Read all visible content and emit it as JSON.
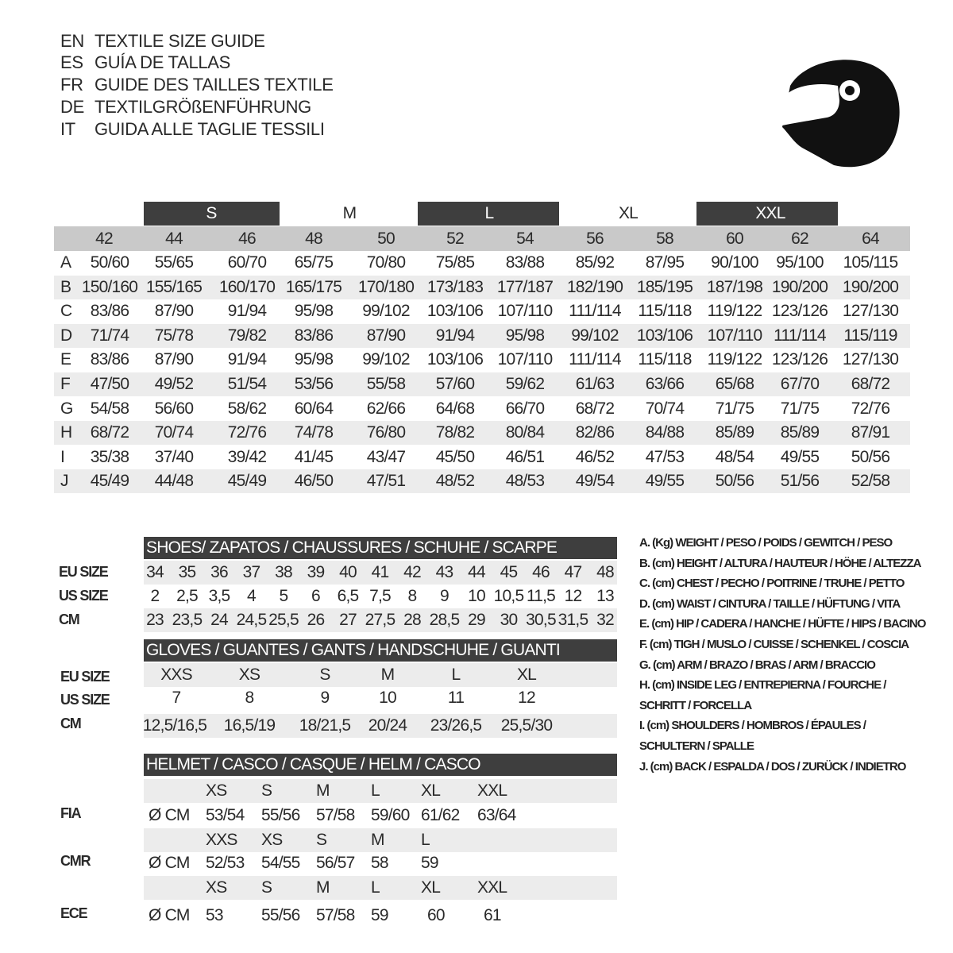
{
  "titles": [
    {
      "code": "EN",
      "text": "TEXTILE SIZE GUIDE"
    },
    {
      "code": "ES",
      "text": "GUÍA DE TALLAS"
    },
    {
      "code": "FR",
      "text": "GUIDE DES TAILLES TEXTILE"
    },
    {
      "code": "DE",
      "text": "TEXTILGRÖßENFÜHRUNG"
    },
    {
      "code": "IT",
      "text": "GUIDA ALLE TAGLIE TESSILI"
    }
  ],
  "icon": "helmet-icon",
  "colors": {
    "dark_band": "#3e3e3e",
    "size_row": "#c9c9c9",
    "alt_row": "#ececec"
  },
  "textile": {
    "letter_sizes": [
      "S",
      "M",
      "L",
      "XL",
      "XXL"
    ],
    "sizes": [
      "42",
      "44",
      "46",
      "48",
      "50",
      "52",
      "54",
      "56",
      "58",
      "60",
      "62",
      "64"
    ],
    "rows": [
      {
        "key": "A",
        "values": [
          "50/60",
          "55/65",
          "60/70",
          "65/75",
          "70/80",
          "75/85",
          "83/88",
          "85/92",
          "87/95",
          "90/100",
          "95/100",
          "105/115"
        ]
      },
      {
        "key": "B",
        "values": [
          "150/160",
          "155/165",
          "160/170",
          "165/175",
          "170/180",
          "173/183",
          "177/187",
          "182/190",
          "185/195",
          "187/198",
          "190/200",
          "190/200"
        ]
      },
      {
        "key": "C",
        "values": [
          "83/86",
          "87/90",
          "91/94",
          "95/98",
          "99/102",
          "103/106",
          "107/110",
          "111/114",
          "115/118",
          "119/122",
          "123/126",
          "127/130"
        ]
      },
      {
        "key": "D",
        "values": [
          "71/74",
          "75/78",
          "79/82",
          "83/86",
          "87/90",
          "91/94",
          "95/98",
          "99/102",
          "103/106",
          "107/110",
          "111/114",
          "115/119"
        ]
      },
      {
        "key": "E",
        "values": [
          "83/86",
          "87/90",
          "91/94",
          "95/98",
          "99/102",
          "103/106",
          "107/110",
          "111/114",
          "115/118",
          "119/122",
          "123/126",
          "127/130"
        ]
      },
      {
        "key": "F",
        "values": [
          "47/50",
          "49/52",
          "51/54",
          "53/56",
          "55/58",
          "57/60",
          "59/62",
          "61/63",
          "63/66",
          "65/68",
          "67/70",
          "68/72"
        ]
      },
      {
        "key": "G",
        "values": [
          "54/58",
          "56/60",
          "58/62",
          "60/64",
          "62/66",
          "64/68",
          "66/70",
          "68/72",
          "70/74",
          "71/75",
          "71/75",
          "72/76"
        ]
      },
      {
        "key": "H",
        "values": [
          "68/72",
          "70/74",
          "72/76",
          "74/78",
          "76/80",
          "78/82",
          "80/84",
          "82/86",
          "84/88",
          "85/89",
          "85/89",
          "87/91"
        ]
      },
      {
        "key": "I",
        "values": [
          "35/38",
          "37/40",
          "39/42",
          "41/45",
          "43/47",
          "45/50",
          "46/51",
          "46/52",
          "47/53",
          "48/54",
          "49/55",
          "50/56"
        ]
      },
      {
        "key": "J",
        "values": [
          "45/49",
          "44/48",
          "45/49",
          "46/50",
          "47/51",
          "48/52",
          "48/53",
          "49/54",
          "49/55",
          "50/56",
          "51/56",
          "52/58"
        ]
      }
    ]
  },
  "shoes": {
    "title": "SHOES/ ZAPATOS / CHAUSSURES / SCHUHE / SCARPE",
    "rows": [
      {
        "label": "EU SIZE",
        "values": [
          "34",
          "35",
          "36",
          "37",
          "38",
          "39",
          "40",
          "41",
          "42",
          "43",
          "44",
          "45",
          "46",
          "47",
          "48"
        ]
      },
      {
        "label": "US SIZE",
        "values": [
          "2",
          "2,5",
          "3,5",
          "4",
          "5",
          "6",
          "6,5",
          "7,5",
          "8",
          "9",
          "10",
          "10,5",
          "11,5",
          "12",
          "13"
        ]
      },
      {
        "label": "CM",
        "values": [
          "23",
          "23,5",
          "24",
          "24,5",
          "25,5",
          "26",
          "27",
          "27,5",
          "28",
          "28,5",
          "29",
          "30",
          "30,5",
          "31,5",
          "32"
        ]
      }
    ]
  },
  "gloves": {
    "title": "GLOVES / GUANTES / GANTS / HANDSCHUHE / GUANTI",
    "rows": [
      {
        "label": "EU SIZE",
        "values": [
          "XXS",
          "XS",
          "S",
          "M",
          "L",
          "XL"
        ]
      },
      {
        "label": "US SIZE",
        "values": [
          "7",
          "8",
          "9",
          "10",
          "11",
          "12"
        ]
      },
      {
        "label": "CM",
        "values": [
          "12,5/16,5",
          "16,5/19",
          "18/21,5",
          "20/24",
          "23/26,5",
          "25,5/30"
        ]
      }
    ]
  },
  "helmet": {
    "title": "HELMET / CASCO / CASQUE / HELM / CASCO",
    "unit": "Ø CM",
    "standards": [
      {
        "label": "FIA",
        "sizes": [
          "XS",
          "S",
          "M",
          "L",
          "XL",
          "XXL"
        ],
        "values": [
          "53/54",
          "55/56",
          "57/58",
          "59/60",
          "61/62",
          "63/64"
        ]
      },
      {
        "label": "CMR",
        "sizes": [
          "XXS",
          "XS",
          "S",
          "M",
          "L"
        ],
        "values": [
          "52/53",
          "54/55",
          "56/57",
          "58",
          "59"
        ]
      },
      {
        "label": "ECE",
        "sizes": [
          "XS",
          "S",
          "M",
          "L",
          "XL",
          "XXL"
        ],
        "values": [
          "53",
          "55/56",
          "57/58",
          "59",
          "60",
          "61"
        ]
      }
    ]
  },
  "legend": [
    "A. (Kg) WEIGHT / PESO / POIDS / GEWITCH / PESO",
    "B. (cm) HEIGHT / ALTURA / HAUTEUR / HÖHE / ALTEZZA",
    "C. (cm) CHEST / PECHO / POITRINE / TRUHE / PETTO",
    "D. (cm) WAIST / CINTURA / TAILLE / HÜFTUNG / VITA",
    "E. (cm) HIP / CADERA / HANCHE / HÜFTE / HIPS /  BACINO",
    "F.  (cm) TIGH / MUSLO / CUISSE / SCHENKEL / COSCIA",
    "G. (cm) ARM  / BRAZO / BRAS / ARM / BRACCIO",
    "H. (cm) INSIDE LEG / ENTREPIERNA / FOURCHE /",
    "SCHRITT / FORCELLA",
    "I.  (cm) SHOULDERS / HOMBROS / ÉPAULES /",
    "SCHULTERN / SPALLE",
    "J. (cm) BACK / ESPALDA / DOS / ZURÜCK / INDIETRO"
  ]
}
